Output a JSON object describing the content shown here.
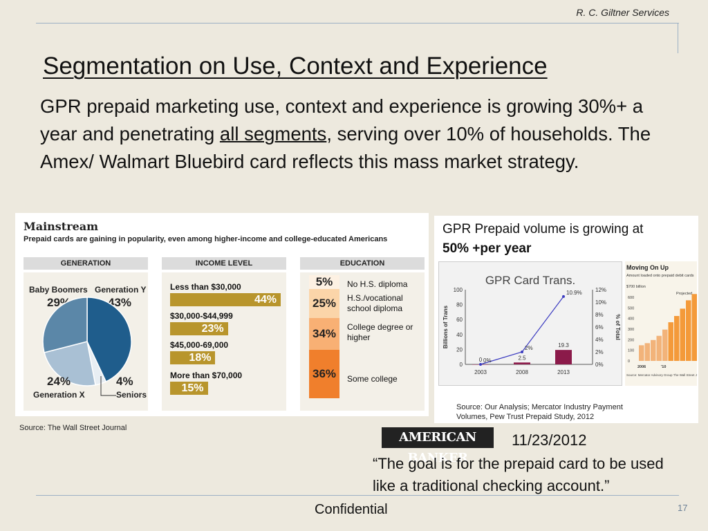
{
  "header": {
    "company": "R. C. Giltner Services",
    "title": "Segmentation on Use, Context and Experience"
  },
  "body": {
    "part1": "GPR prepaid marketing use, context and experience is growing 30%+ a year and penetrating ",
    "underlined": "all segments",
    "part2": ", serving over 10% of households. The Amex/ Walmart Bluebird card reflects this mass market strategy."
  },
  "wsj": {
    "heading": "Mainstream",
    "subheading": "Prepaid cards are gaining in popularity, even among higher-income and college-educated Americans",
    "columns": [
      "GENERATION",
      "INCOME LEVEL",
      "EDUCATION"
    ],
    "generation": [
      {
        "label": "Baby Boomers",
        "pct": "29%",
        "value": 29,
        "color": "#5b87a8"
      },
      {
        "label": "Generation Y",
        "pct": "43%",
        "value": 43,
        "color": "#1f5d8c"
      },
      {
        "label": "Seniors",
        "pct": "4%",
        "value": 4,
        "color": "#e8eef3"
      },
      {
        "label": "Generation X",
        "pct": "24%",
        "value": 24,
        "color": "#a9c0d4"
      }
    ],
    "income": [
      {
        "label": "Less than $30,000",
        "pct": "44%",
        "value": 44
      },
      {
        "label": "$30,000-$44,999",
        "pct": "23%",
        "value": 23
      },
      {
        "label": "$45,000-69,000",
        "pct": "18%",
        "value": 18
      },
      {
        "label": "More than $70,000",
        "pct": "15%",
        "value": 15
      }
    ],
    "education": [
      {
        "pct": "5%",
        "label": "No H.S. diploma",
        "value": 5,
        "color": "#fdf1e3"
      },
      {
        "pct": "25%",
        "label": "H.S./vocational school diploma",
        "value": 25,
        "color": "#fbd5a9"
      },
      {
        "pct": "34%",
        "label": "College degree or higher",
        "value": 34,
        "color": "#f8b074"
      },
      {
        "pct": "36%",
        "label": "Some college",
        "value": 36,
        "color": "#f07f2c"
      }
    ],
    "source": "Source: The Wall Street Journal"
  },
  "gpr": {
    "title_line1": "GPR Prepaid volume is growing at",
    "title_line2": "50% +per year",
    "chart_data": {
      "type": "bar",
      "title": "GPR Card Trans.",
      "categories": [
        "2003",
        "2008",
        "2013"
      ],
      "ylabel": "Billions of Trans",
      "y2label": "% of Total",
      "ylim": [
        0,
        100
      ],
      "y2lim": [
        0,
        12
      ],
      "yticks": [
        "0",
        "20",
        "40",
        "60",
        "80",
        "100"
      ],
      "y2ticks": [
        "0%",
        "2%",
        "4%",
        "6%",
        "8%",
        "10%",
        "12%"
      ],
      "series": [
        {
          "type": "bar",
          "values": [
            0,
            2.5,
            19.3
          ],
          "labels": [
            "0",
            "2.5",
            "19.3"
          ],
          "color": "#8b1a4a"
        },
        {
          "type": "line",
          "values": [
            0,
            2,
            10.9
          ],
          "labels": [
            "0%",
            "2%",
            "10.9%"
          ],
          "color": "#3a3ac0"
        }
      ]
    },
    "inset": {
      "title": "Moving On Up",
      "subtitle": "Amount loaded onto prepaid debit cards",
      "unit": "$700 billion",
      "projected": "Projected",
      "yticks": [
        "600",
        "500",
        "400",
        "300",
        "200",
        "100",
        "0"
      ],
      "xlabels": [
        "2006",
        "'10"
      ],
      "values": [
        150,
        170,
        200,
        240,
        300,
        370,
        430,
        500,
        580,
        640
      ],
      "source": "Source: Mercator Advisory Group The Wall Street Journal"
    },
    "source_line1": "Source: Our Analysis; Mercator Industry Payment",
    "source_line2": "Volumes, Pew Trust Prepaid Study, 2012"
  },
  "banker": {
    "logo": "AMERICAN BANKER",
    "date": "11/23/2012",
    "quote": "“The goal is for the prepaid card to be used like a traditional checking account.”"
  },
  "footer": {
    "confidential": "Confidential",
    "page": "17"
  }
}
